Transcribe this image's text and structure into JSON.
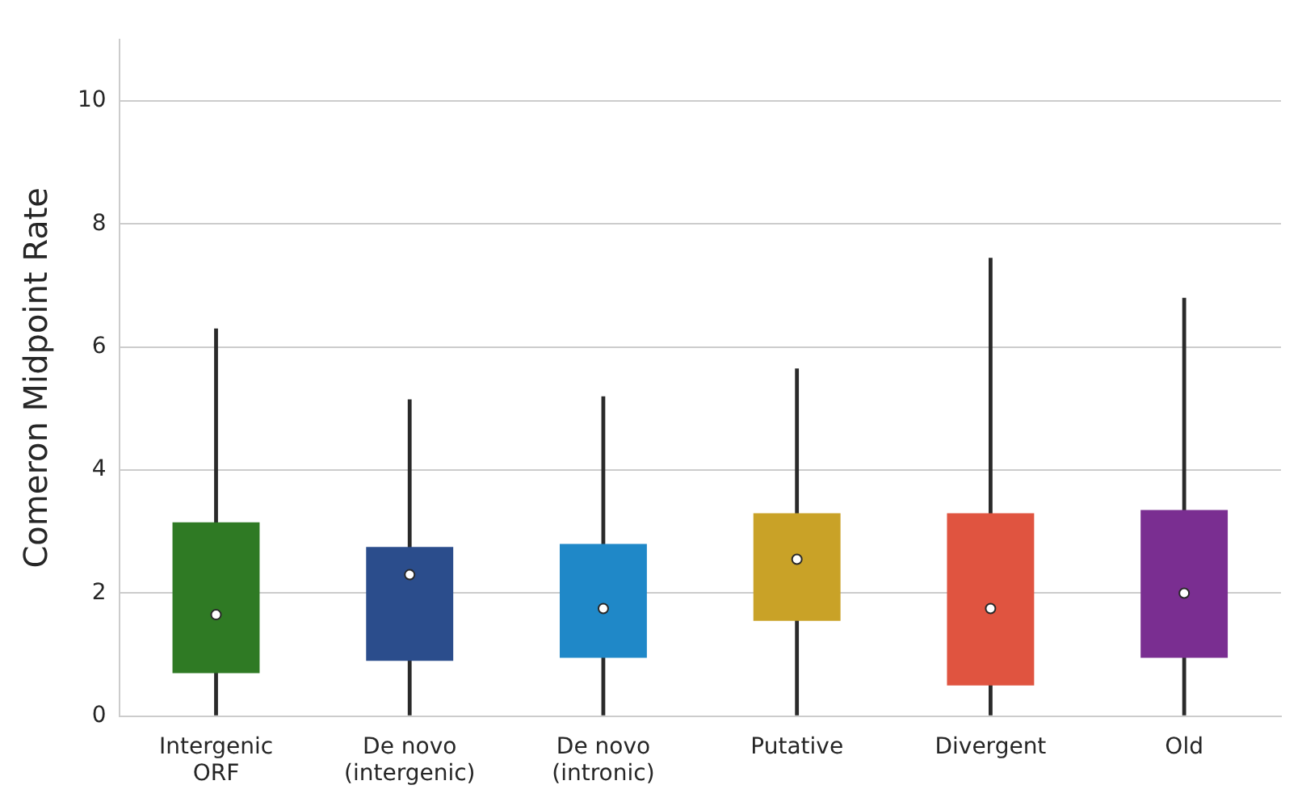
{
  "chart_data": {
    "type": "box",
    "ylabel": "Comeron Midpoint Rate",
    "categories": [
      "Intergenic\nORF",
      "De novo\n(intergenic)",
      "De novo\n(intronic)",
      "Putative",
      "Divergent",
      "Old"
    ],
    "colors": [
      "#2f7a24",
      "#2b4d8c",
      "#1f88c8",
      "#c9a227",
      "#e05440",
      "#7a2e91"
    ],
    "boxes": [
      {
        "low": 0,
        "q1": 0.7,
        "median": 1.65,
        "q3": 3.15,
        "high": 6.3
      },
      {
        "low": 0,
        "q1": 0.9,
        "median": 2.3,
        "q3": 2.75,
        "high": 5.15
      },
      {
        "low": 0,
        "q1": 0.95,
        "median": 1.75,
        "q3": 2.8,
        "high": 5.2
      },
      {
        "low": 0,
        "q1": 1.55,
        "median": 2.55,
        "q3": 3.3,
        "high": 5.65
      },
      {
        "low": 0,
        "q1": 0.5,
        "median": 1.75,
        "q3": 3.3,
        "high": 7.45
      },
      {
        "low": 0,
        "q1": 0.95,
        "median": 2.0,
        "q3": 3.35,
        "high": 6.8
      }
    ],
    "ylim": [
      0,
      11
    ],
    "yticks": [
      0,
      2,
      4,
      6,
      8,
      10
    ],
    "grid": "y"
  }
}
